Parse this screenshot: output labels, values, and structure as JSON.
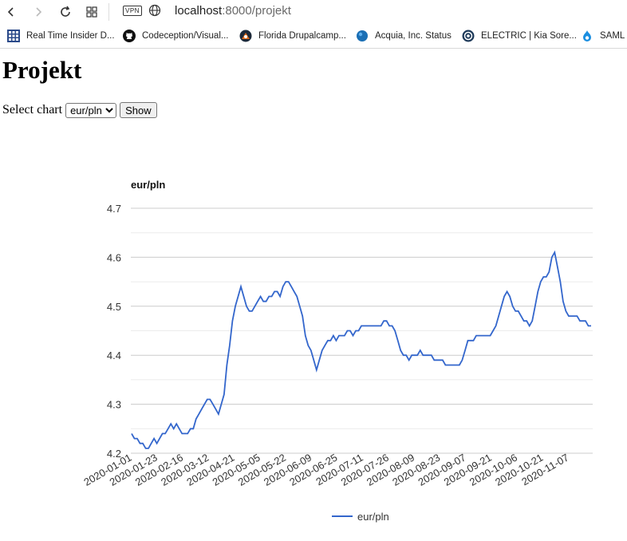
{
  "browser": {
    "url_host": "localhost",
    "url_path": ":8000/projekt",
    "vpn_label": "VPN"
  },
  "bookmarks": [
    {
      "label": "Real Time Insider D...",
      "icon": "grid-icon",
      "color": "#2b4a8a"
    },
    {
      "label": "Codeception/Visual...",
      "icon": "github-icon",
      "color": "#111111"
    },
    {
      "label": "Florida Drupalcamp...",
      "icon": "drupalcamp-icon",
      "color": "#e06a1b"
    },
    {
      "label": "Acquia, Inc. Status",
      "icon": "drop-icon",
      "color": "#1a6fb5"
    },
    {
      "label": "ELECTRIC | Kia Sore...",
      "icon": "kia-icon",
      "color": "#1f3b5a"
    },
    {
      "label": "SAML",
      "icon": "drupal-icon",
      "color": "#1a8ee0"
    }
  ],
  "page": {
    "title": "Projekt",
    "select_label": "Select chart",
    "select_value": "eur/pln",
    "show_button": "Show"
  },
  "chart_data": {
    "type": "line",
    "title": "eur/pln",
    "ylim": [
      4.2,
      4.7
    ],
    "yticks": [
      "4.2",
      "4.3",
      "4.4",
      "4.5",
      "4.6",
      "4.7"
    ],
    "xtick_labels": [
      "2020-01-01",
      "2020-01-23",
      "2020-02-16",
      "2020-03-12",
      "2020-04-21",
      "2020-05-05",
      "2020-05-22",
      "2020-06-09",
      "2020-06-25",
      "2020-07-11",
      "2020-07-26",
      "2020-08-09",
      "2020-08-23",
      "2020-09-07",
      "2020-09-21",
      "2020-10-06",
      "2020-10-21",
      "2020-11-07"
    ],
    "legend": "bottom",
    "grid": true,
    "line_color": "#3366cc",
    "series": [
      {
        "name": "eur/pln",
        "values": [
          4.24,
          4.23,
          4.23,
          4.22,
          4.22,
          4.21,
          4.21,
          4.22,
          4.23,
          4.22,
          4.23,
          4.24,
          4.24,
          4.25,
          4.26,
          4.25,
          4.26,
          4.25,
          4.24,
          4.24,
          4.24,
          4.25,
          4.25,
          4.27,
          4.28,
          4.29,
          4.3,
          4.31,
          4.31,
          4.3,
          4.29,
          4.28,
          4.3,
          4.32,
          4.38,
          4.42,
          4.47,
          4.5,
          4.52,
          4.54,
          4.52,
          4.5,
          4.49,
          4.49,
          4.5,
          4.51,
          4.52,
          4.51,
          4.51,
          4.52,
          4.52,
          4.53,
          4.53,
          4.52,
          4.54,
          4.55,
          4.55,
          4.54,
          4.53,
          4.52,
          4.5,
          4.48,
          4.44,
          4.42,
          4.41,
          4.39,
          4.37,
          4.39,
          4.41,
          4.42,
          4.43,
          4.43,
          4.44,
          4.43,
          4.44,
          4.44,
          4.44,
          4.45,
          4.45,
          4.44,
          4.45,
          4.45,
          4.46,
          4.46,
          4.46,
          4.46,
          4.46,
          4.46,
          4.46,
          4.46,
          4.47,
          4.47,
          4.46,
          4.46,
          4.45,
          4.43,
          4.41,
          4.4,
          4.4,
          4.39,
          4.4,
          4.4,
          4.4,
          4.41,
          4.4,
          4.4,
          4.4,
          4.4,
          4.39,
          4.39,
          4.39,
          4.39,
          4.38,
          4.38,
          4.38,
          4.38,
          4.38,
          4.38,
          4.39,
          4.41,
          4.43,
          4.43,
          4.43,
          4.44,
          4.44,
          4.44,
          4.44,
          4.44,
          4.44,
          4.45,
          4.46,
          4.48,
          4.5,
          4.52,
          4.53,
          4.52,
          4.5,
          4.49,
          4.49,
          4.48,
          4.47,
          4.47,
          4.46,
          4.47,
          4.5,
          4.53,
          4.55,
          4.56,
          4.56,
          4.57,
          4.6,
          4.61,
          4.58,
          4.55,
          4.51,
          4.49,
          4.48,
          4.48,
          4.48,
          4.48,
          4.47,
          4.47,
          4.47,
          4.46,
          4.46
        ]
      }
    ]
  }
}
